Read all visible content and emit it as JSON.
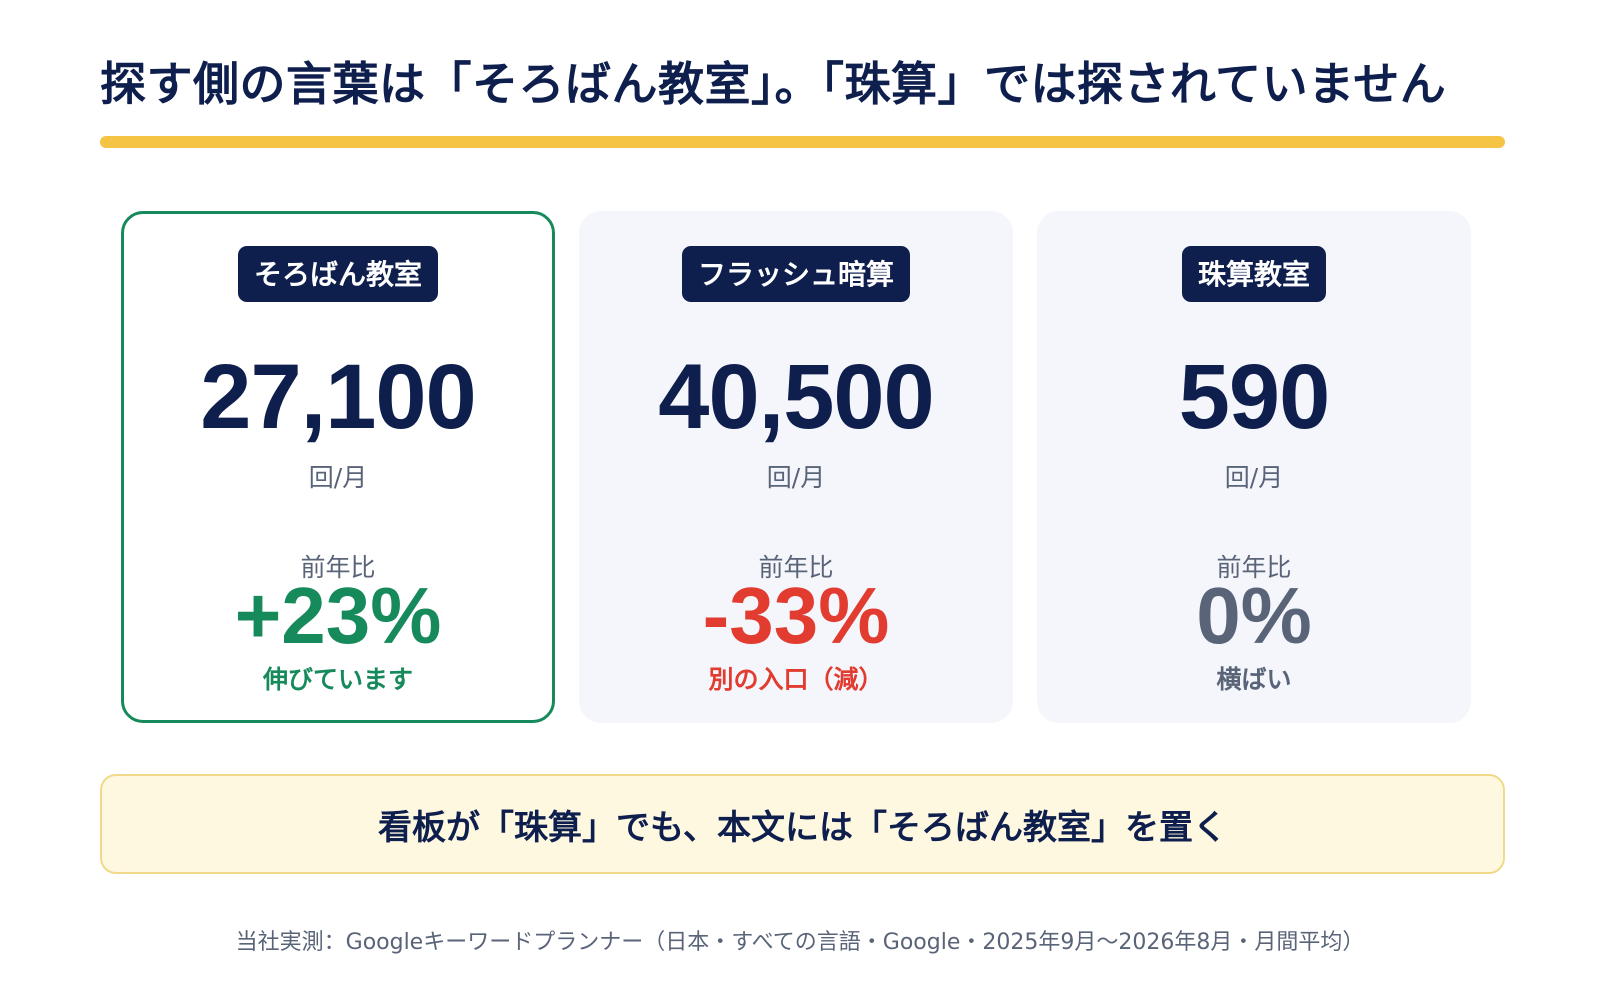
{
  "header": {
    "title": "探す側の言葉は「そろばん教室」。「珠算」では探されていません"
  },
  "accent_colors": {
    "title_bar": "#f6c445",
    "navy": "#0e1f4d",
    "growth": "#178a5c",
    "decline": "#e23b2f",
    "flat": "#5a6478"
  },
  "cards": [
    {
      "keyword": "そろばん教室",
      "volume": "27,100",
      "unit": "回/月",
      "yoy_label": "前年比",
      "yoy": "+23%",
      "yoy_note": "伸びています",
      "color": "#178a5c"
    },
    {
      "keyword": "フラッシュ暗算",
      "volume": "40,500",
      "unit": "回/月",
      "yoy_label": "前年比",
      "yoy": "-33%",
      "yoy_note": "別の入口（減）",
      "color": "#e23b2f"
    },
    {
      "keyword": "珠算教室",
      "volume": "590",
      "unit": "回/月",
      "yoy_label": "前年比",
      "yoy": "0%",
      "yoy_note": "横ばい",
      "color": "#5a6478"
    }
  ],
  "callout": {
    "text": "看板が「珠算」でも、本文には「そろばん教室」を置く"
  },
  "source": {
    "text": "当社実測：Googleキーワードプランナー（日本・すべての言語・Google・2025年9月〜2026年8月・月間平均）"
  }
}
